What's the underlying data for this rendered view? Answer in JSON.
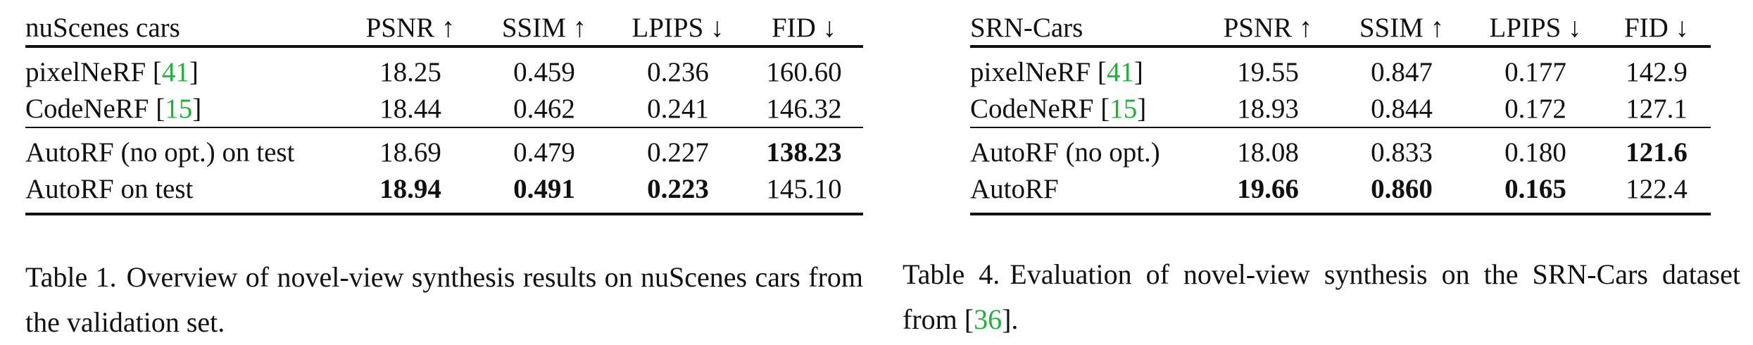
{
  "table1": {
    "headers": [
      "nuScenes cars",
      "PSNR ↑",
      "SSIM ↑",
      "LPIPS ↓",
      "FID ↓"
    ],
    "rows": [
      {
        "name": "pixelNeRF",
        "cite": "41",
        "psnr": "18.25",
        "ssim": "0.459",
        "lpips": "0.236",
        "fid": "160.60"
      },
      {
        "name": "CodeNeRF",
        "cite": "15",
        "psnr": "18.44",
        "ssim": "0.462",
        "lpips": "0.241",
        "fid": "146.32"
      },
      {
        "name": "AutoRF (no opt.) on test",
        "psnr": "18.69",
        "ssim": "0.479",
        "lpips": "0.227",
        "fid": "138.23"
      },
      {
        "name": "AutoRF on test",
        "psnr": "18.94",
        "ssim": "0.491",
        "lpips": "0.223",
        "fid": "145.10"
      }
    ],
    "caption_label": "Table 1.",
    "caption_text": "Overview of novel-view synthesis results on nuScenes cars from the validation set."
  },
  "table4": {
    "headers": [
      "SRN-Cars",
      "PSNR ↑",
      "SSIM ↑",
      "LPIPS ↓",
      "FID ↓"
    ],
    "rows": [
      {
        "name": "pixelNeRF",
        "cite": "41",
        "psnr": "19.55",
        "ssim": "0.847",
        "lpips": "0.177",
        "fid": "142.9"
      },
      {
        "name": "CodeNeRF",
        "cite": "15",
        "psnr": "18.93",
        "ssim": "0.844",
        "lpips": "0.172",
        "fid": "127.1"
      },
      {
        "name": "AutoRF (no opt.)",
        "psnr": "18.08",
        "ssim": "0.833",
        "lpips": "0.180",
        "fid": "121.6"
      },
      {
        "name": "AutoRF",
        "psnr": "19.66",
        "ssim": "0.860",
        "lpips": "0.165",
        "fid": "122.4"
      }
    ],
    "caption_label": "Table 4.",
    "caption_text_before": "Evaluation of novel-view synthesis on the SRN-Cars dataset from [",
    "caption_cite": "36",
    "caption_text_after": "]."
  }
}
